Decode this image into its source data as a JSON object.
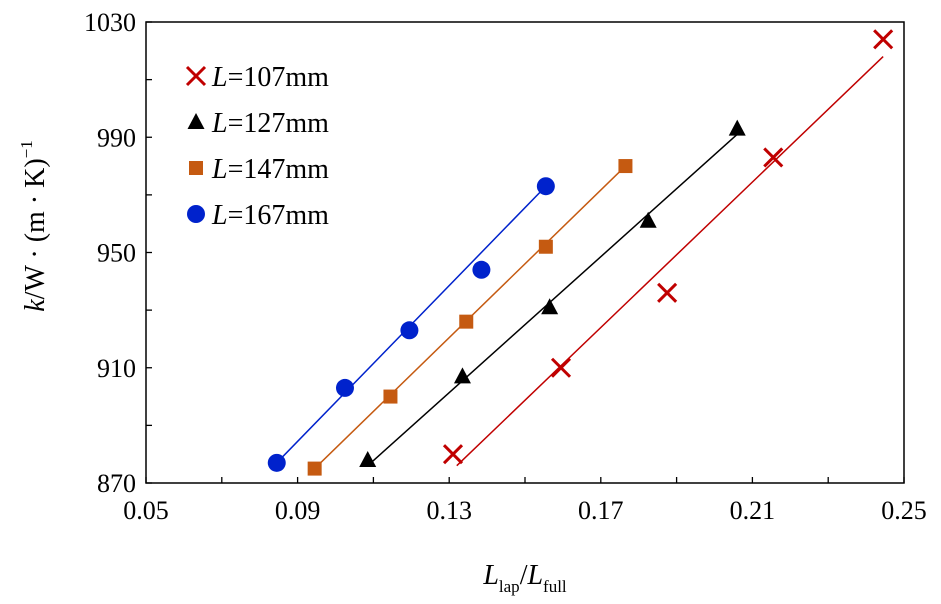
{
  "chart_data": {
    "type": "scatter",
    "xlabel": {
      "main": "L",
      "sub": "lap",
      "sep": "/",
      "main2": "L",
      "sub2": "full"
    },
    "ylabel": {
      "k": "k",
      "rest": "/W · (m · K)",
      "sup": "−1"
    },
    "xlim": [
      0.05,
      0.25
    ],
    "ylim": [
      870,
      1030
    ],
    "x_ticks": [
      "0.05",
      "0.09",
      "0.13",
      "0.17",
      "0.21",
      "0.25"
    ],
    "y_ticks": [
      "870",
      "910",
      "950",
      "990",
      "1030"
    ],
    "grid": false,
    "legend_position": "top-left",
    "series": [
      {
        "name": "L=107mm",
        "name_italic": "L",
        "name_rest": "=107mm",
        "marker": "x",
        "color": "#c00000",
        "points": [
          [
            0.131,
            880
          ],
          [
            0.1595,
            910
          ],
          [
            0.1875,
            936
          ],
          [
            0.2155,
            983
          ],
          [
            0.2445,
            1024
          ]
        ],
        "fit": [
          [
            0.132,
            876
          ],
          [
            0.2445,
            1018
          ]
        ]
      },
      {
        "name": "L=127mm",
        "name_italic": "L",
        "name_rest": "=127mm",
        "marker": "triangle",
        "color": "#000000",
        "points": [
          [
            0.1085,
            878
          ],
          [
            0.1335,
            907
          ],
          [
            0.1565,
            931
          ],
          [
            0.1825,
            961
          ],
          [
            0.206,
            993
          ]
        ],
        "fit": [
          [
            0.1085,
            876
          ],
          [
            0.206,
            991
          ]
        ]
      },
      {
        "name": "L=147mm",
        "name_italic": "L",
        "name_rest": "=147mm",
        "marker": "square",
        "color": "#c55a11",
        "points": [
          [
            0.0945,
            875
          ],
          [
            0.1145,
            900
          ],
          [
            0.1345,
            926
          ],
          [
            0.1555,
            952
          ],
          [
            0.1765,
            980
          ]
        ],
        "fit": [
          [
            0.0945,
            875
          ],
          [
            0.1765,
            980
          ]
        ]
      },
      {
        "name": "L=167mm",
        "name_italic": "L",
        "name_rest": "=167mm",
        "marker": "circle",
        "color": "#0022cc",
        "points": [
          [
            0.0845,
            877
          ],
          [
            0.1025,
            903
          ],
          [
            0.1195,
            923
          ],
          [
            0.1385,
            944
          ],
          [
            0.1555,
            973
          ]
        ],
        "fit": [
          [
            0.0845,
            877
          ],
          [
            0.1555,
            973
          ]
        ]
      }
    ]
  }
}
